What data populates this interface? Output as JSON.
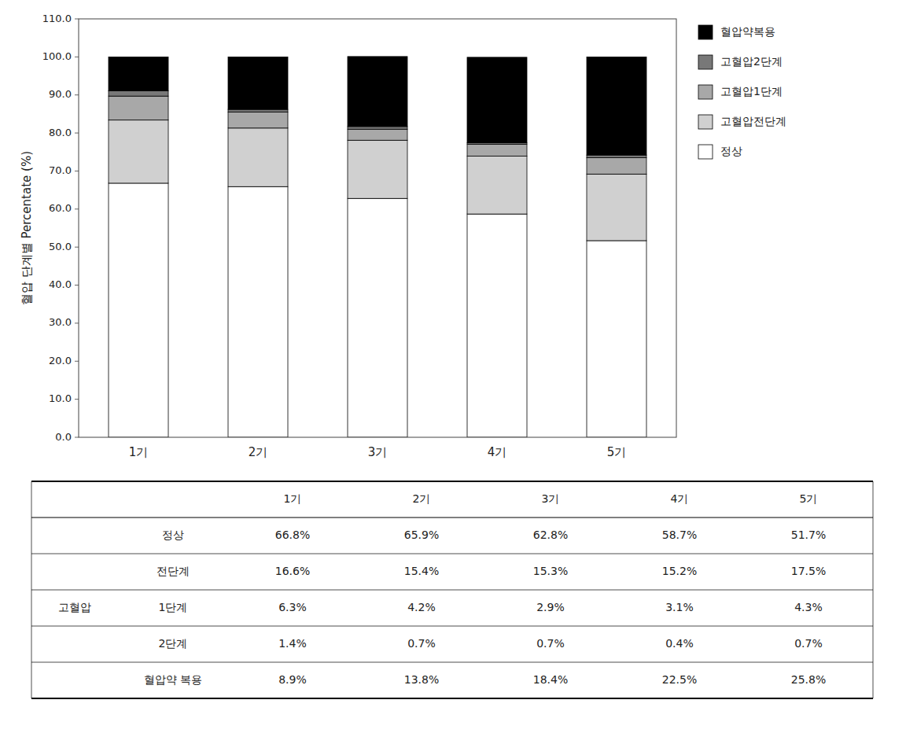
{
  "chart_data": {
    "type": "bar",
    "stacked": true,
    "grid": false,
    "legend": "right",
    "ylabel": "혈압 단계별 Percentate (%)",
    "categories": [
      "1기",
      "2기",
      "3기",
      "4기",
      "5기"
    ],
    "series": [
      {
        "name": "정상",
        "color": "#FFFFFF",
        "values": [
          66.8,
          65.9,
          62.8,
          58.7,
          51.7
        ],
        "value_labels": [
          "66.8%",
          "65.9%",
          "62.8%",
          "58.7%",
          "51.7%"
        ]
      },
      {
        "name": "고혈압전단계",
        "color": "#D0D0D0",
        "values": [
          16.6,
          15.4,
          15.3,
          15.2,
          17.5
        ],
        "value_labels": [
          "16.6%",
          "15.4%",
          "15.3%",
          "15.2%",
          "17.5%"
        ]
      },
      {
        "name": "고혈압1단계",
        "color": "#A8A8A8",
        "values": [
          6.3,
          4.2,
          2.9,
          3.1,
          4.3
        ],
        "value_labels": [
          "6.3%",
          "4.2%",
          "2.9%",
          "3.1%",
          "4.3%"
        ]
      },
      {
        "name": "고혈압2단계",
        "color": "#787878",
        "values": [
          1.4,
          0.7,
          0.7,
          0.4,
          0.7
        ],
        "value_labels": [
          "1.4%",
          "0.7%",
          "0.7%",
          "0.4%",
          "0.7%"
        ]
      },
      {
        "name": "혈압약복용",
        "color": "#000000",
        "values": [
          8.9,
          13.8,
          18.4,
          22.5,
          25.8
        ],
        "value_labels": [
          "8.9%",
          "13.8%",
          "18.4%",
          "22.5%",
          "25.8%"
        ]
      }
    ],
    "ylim": [
      0,
      110
    ],
    "yticks": [
      {
        "value": 0,
        "label": "0.0"
      },
      {
        "value": 10,
        "label": "10.0"
      },
      {
        "value": 20,
        "label": "20.0"
      },
      {
        "value": 30,
        "label": "30.0"
      },
      {
        "value": 40,
        "label": "40.0"
      },
      {
        "value": 50,
        "label": "50.0"
      },
      {
        "value": 60,
        "label": "60.0"
      },
      {
        "value": 70,
        "label": "70.0"
      },
      {
        "value": 80,
        "label": "80.0"
      },
      {
        "value": 90,
        "label": "90.0"
      },
      {
        "value": 100,
        "label": "100.0"
      },
      {
        "value": 110,
        "label": "110.0"
      }
    ],
    "table": {
      "group_label": "고혈압",
      "row_labels": [
        "정상",
        "전단계",
        "1단계",
        "2단계",
        "혈압약 복용"
      ]
    }
  }
}
